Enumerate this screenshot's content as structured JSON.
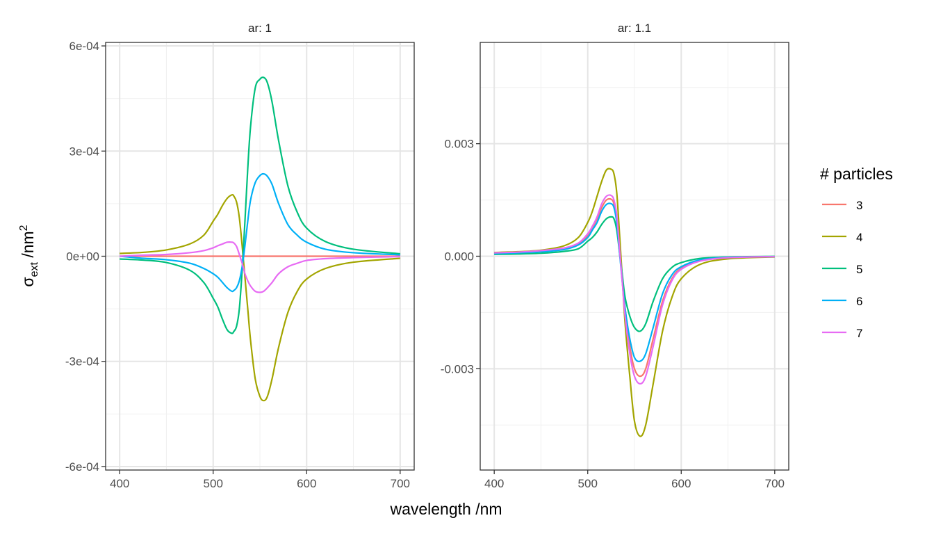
{
  "chart_data": {
    "type": "line",
    "xlabel": "wavelength /nm",
    "ylabel": {
      "base": "σ",
      "sub": "ext",
      "unit": " /nm",
      "sup": "2"
    },
    "legend": {
      "title": "# particles",
      "position": "right"
    },
    "grid": true,
    "colors": {
      "3": "#F8766D",
      "4": "#A3A500",
      "5": "#00BF7D",
      "6": "#00B0F6",
      "7": "#E76BF3"
    },
    "panels": [
      {
        "label": "ar: 1",
        "xlim": [
          385,
          715
        ],
        "ylim": [
          -0.00061,
          0.00061
        ],
        "xticks": [
          400,
          500,
          600,
          700
        ],
        "yticks": [
          -0.0006,
          -0.0003,
          0,
          0.0003,
          0.0006
        ],
        "ytick_labels": [
          "-6e-04",
          "-3e-04",
          "0e+00",
          "3e-04",
          "6e-04"
        ],
        "x": [
          400,
          425,
          450,
          475,
          490,
          500,
          505,
          510,
          515,
          520,
          522,
          525,
          528,
          531,
          534,
          537,
          540,
          545,
          550,
          554,
          558,
          563,
          570,
          580,
          590,
          600,
          620,
          650,
          700
        ],
        "series": [
          {
            "name": "3",
            "values": [
              0,
              0,
              0,
              0,
              0,
              0,
              0,
              0,
              0,
              0,
              0,
              0,
              0,
              0,
              0,
              0,
              0,
              0,
              0,
              0,
              0,
              0,
              0,
              0,
              0,
              0,
              0,
              0,
              0
            ]
          },
          {
            "name": "4",
            "values": [
              8e-06,
              1.1e-05,
              1.8e-05,
              3.5e-05,
              6e-05,
              0.0001,
              0.00012,
              0.000145,
              0.000165,
              0.000175,
              0.000172,
              0.000155,
              0.00011,
              3e-05,
              -6e-05,
              -0.00015,
              -0.00024,
              -0.00035,
              -0.0004,
              -0.000412,
              -0.0004,
              -0.00035,
              -0.00026,
              -0.00016,
              -0.0001,
              -6.5e-05,
              -3.5e-05,
              -1.7e-05,
              -6e-06
            ]
          },
          {
            "name": "5",
            "values": [
              -8e-06,
              -1.1e-05,
              -1.8e-05,
              -4e-05,
              -7.5e-05,
              -0.00012,
              -0.000145,
              -0.00018,
              -0.00021,
              -0.00022,
              -0.000215,
              -0.0002,
              -0.00015,
              -4e-05,
              0.0001,
              0.00025,
              0.00037,
              0.00048,
              0.000505,
              0.00051,
              0.000495,
              0.00044,
              0.00033,
              0.0002,
              0.000125,
              8e-05,
              4.2e-05,
              2e-05,
              7e-06
            ]
          },
          {
            "name": "6",
            "values": [
              0.0,
              -6e-06,
              -1e-05,
              -2e-05,
              -3.5e-05,
              -5e-05,
              -6e-05,
              -7.5e-05,
              -9e-05,
              -0.0001,
              -9.8e-05,
              -9e-05,
              -7e-05,
              -3e-05,
              3e-05,
              0.0001,
              0.00016,
              0.00021,
              0.00023,
              0.000235,
              0.000228,
              0.000205,
              0.00015,
              9e-05,
              6e-05,
              4e-05,
              2e-05,
              1e-05,
              4e-06
            ]
          },
          {
            "name": "7",
            "values": [
              0.0,
              3e-06,
              5e-06,
              1e-05,
              1.6e-05,
              2.4e-05,
              3e-05,
              3.5e-05,
              4e-05,
              4e-05,
              3.8e-05,
              2.8e-05,
              5e-06,
              -2e-05,
              -5e-05,
              -7e-05,
              -8.5e-05,
              -0.0001,
              -0.000103,
              -0.0001,
              -9e-05,
              -7.5e-05,
              -5e-05,
              -3e-05,
              -2e-05,
              -1.2e-05,
              -7e-06,
              -4e-06,
              -1e-06
            ]
          }
        ]
      },
      {
        "label": "ar: 1.1",
        "xlim": [
          385,
          715
        ],
        "ylim": [
          -0.0057,
          0.0057
        ],
        "xticks": [
          400,
          500,
          600,
          700
        ],
        "yticks": [
          -0.003,
          0,
          0.003
        ],
        "ytick_labels": [
          "-0.003",
          "0.000",
          "0.003"
        ],
        "x": [
          400,
          425,
          450,
          475,
          490,
          500,
          505,
          510,
          515,
          520,
          525,
          528,
          531,
          534,
          537,
          540,
          545,
          550,
          556,
          562,
          570,
          580,
          590,
          600,
          620,
          650,
          700
        ],
        "series": [
          {
            "name": "3",
            "values": [
              8e-05,
              0.0001,
              0.00014,
              0.0002,
              0.00032,
              0.00055,
              0.00075,
              0.001,
              0.0013,
              0.0015,
              0.00152,
              0.0014,
              0.001,
              0.0002,
              -0.0006,
              -0.0014,
              -0.0024,
              -0.003,
              -0.0032,
              -0.003,
              -0.0022,
              -0.0012,
              -0.0006,
              -0.00032,
              -0.00012,
              -4e-05,
              -1e-05
            ]
          },
          {
            "name": "4",
            "values": [
              0.0001,
              0.00012,
              0.00016,
              0.00028,
              0.0005,
              0.0009,
              0.0012,
              0.0016,
              0.002,
              0.0023,
              0.00232,
              0.0022,
              0.0017,
              0.0006,
              -0.0006,
              -0.0018,
              -0.0032,
              -0.0044,
              -0.0048,
              -0.0045,
              -0.0034,
              -0.002,
              -0.0011,
              -0.0006,
              -0.00022,
              -7e-05,
              -2e-05
            ]
          },
          {
            "name": "5",
            "values": [
              5e-05,
              6e-05,
              8e-05,
              0.00013,
              0.0002,
              0.0004,
              0.0005,
              0.00065,
              0.00085,
              0.001,
              0.00105,
              0.001,
              0.0007,
              0.0001,
              -0.0005,
              -0.0011,
              -0.0016,
              -0.0019,
              -0.002,
              -0.0018,
              -0.0012,
              -0.0006,
              -0.0003,
              -0.00017,
              -6e-05,
              -2e-05,
              -5e-06
            ]
          },
          {
            "name": "6",
            "values": [
              7e-05,
              9e-05,
              0.00012,
              0.00018,
              0.0003,
              0.0005,
              0.0007,
              0.0009,
              0.0012,
              0.00138,
              0.0014,
              0.0013,
              0.0009,
              0.0001,
              -0.0007,
              -0.0014,
              -0.0022,
              -0.0027,
              -0.0028,
              -0.0026,
              -0.0019,
              -0.001,
              -0.0005,
              -0.00028,
              -0.0001,
              -3e-05,
              -1e-05
            ]
          },
          {
            "name": "7",
            "values": [
              9e-05,
              0.00011,
              0.00015,
              0.00022,
              0.00035,
              0.0006,
              0.0008,
              0.00105,
              0.0014,
              0.0016,
              0.00162,
              0.0015,
              0.0011,
              0.0002,
              -0.0007,
              -0.0016,
              -0.0026,
              -0.0032,
              -0.0034,
              -0.0032,
              -0.0024,
              -0.0013,
              -0.00065,
              -0.00035,
              -0.00013,
              -4e-05,
              -1e-05
            ]
          }
        ]
      }
    ]
  }
}
